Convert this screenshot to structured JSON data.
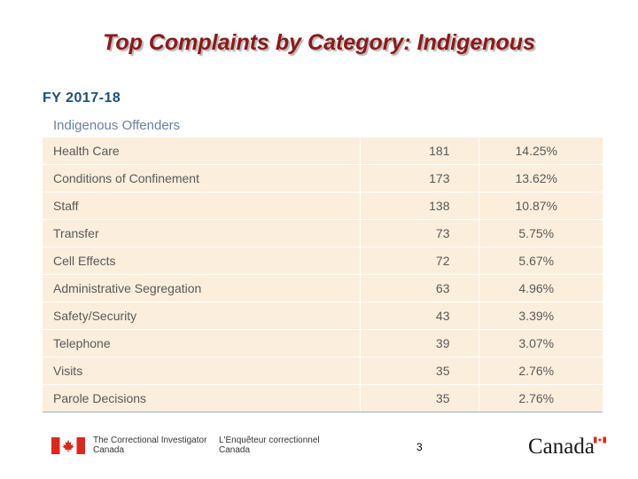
{
  "page": {
    "title": "Top Complaints by Category: Indigenous",
    "fiscal_year": "FY 2017-18"
  },
  "table": {
    "caption": "Indigenous Offenders",
    "rows": [
      {
        "category": "Health Care",
        "count": "181",
        "percent": "14.25%"
      },
      {
        "category": "Conditions of Confinement",
        "count": "173",
        "percent": "13.62%"
      },
      {
        "category": "Staff",
        "count": "138",
        "percent": "10.87%"
      },
      {
        "category": "Transfer",
        "count": "73",
        "percent": "5.75%"
      },
      {
        "category": "Cell Effects",
        "count": "72",
        "percent": "5.67%"
      },
      {
        "category": "Administrative Segregation",
        "count": "63",
        "percent": "4.96%"
      },
      {
        "category": "Safety/Security",
        "count": "43",
        "percent": "3.39%"
      },
      {
        "category": "Telephone",
        "count": "39",
        "percent": "3.07%"
      },
      {
        "category": "Visits",
        "count": "35",
        "percent": "2.76%"
      },
      {
        "category": "Parole Decisions",
        "count": "35",
        "percent": "2.76%"
      }
    ]
  },
  "footer": {
    "org_en_line1": "The Correctional Investigator",
    "org_en_line2": "Canada",
    "org_fr_line1": "L'Enquêteur correctionnel",
    "org_fr_line2": "Canada",
    "page_number": "3",
    "wordmark": "Canada",
    "flag_icon": "canada-flag-icon",
    "flag_color": "#d52b1e"
  }
}
